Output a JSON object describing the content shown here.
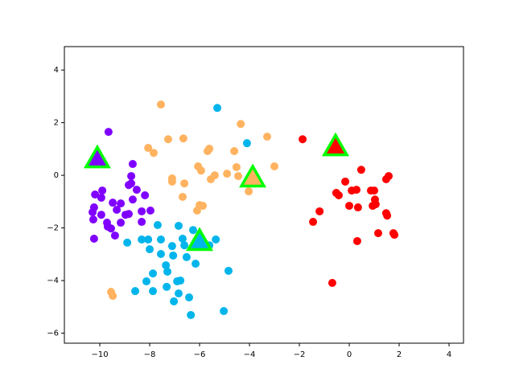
{
  "chart_data": {
    "type": "scatter",
    "xlim": [
      -11.42,
      4.58
    ],
    "ylim": [
      -6.38,
      4.89
    ],
    "xticks": [
      {
        "value": -10,
        "label": "−10"
      },
      {
        "value": -8,
        "label": "−8"
      },
      {
        "value": -6,
        "label": "−6"
      },
      {
        "value": -4,
        "label": "−4"
      },
      {
        "value": -2,
        "label": "−2"
      },
      0,
      2,
      4
    ],
    "yticks": [
      {
        "value": -6,
        "label": "−6"
      },
      {
        "value": -4,
        "label": "−4"
      },
      {
        "value": -2,
        "label": "−2"
      },
      0,
      2,
      4
    ],
    "series": [
      {
        "color": "#8000ff",
        "x": [
          -9.65,
          -9.9,
          -10.19,
          -9.94,
          -9.48,
          -9.16,
          -8.68,
          -8.52,
          -8.74,
          -8.74,
          -8.68,
          -8.84,
          -10.23,
          -9.94,
          -10.26,
          -9.71,
          -9.55,
          -9.16,
          -8.84,
          -8.32,
          -7.97,
          -8.32,
          -9.39,
          -10.23,
          -9.68,
          -8.97,
          -10.29,
          -9.32,
          -8.19
        ],
        "y": [
          1.65,
          -0.58,
          -0.73,
          -0.85,
          -1.04,
          -1.07,
          -0.92,
          -0.55,
          -0.31,
          -0.03,
          0.43,
          -0.37,
          -1.22,
          -1.5,
          -1.68,
          -1.8,
          -2.02,
          -1.8,
          -1.47,
          -1.37,
          -1.34,
          -1.77,
          -2.29,
          -2.41,
          -1.95,
          -1.5,
          -1.4,
          -1.31,
          -0.76
        ]
      },
      {
        "color": "#00b5eb",
        "x": [
          -5.29,
          -4.1,
          -7.68,
          -8.06,
          -7.55,
          -8.0,
          -7.55,
          -7.1,
          -6.84,
          -6.26,
          -6.68,
          -6.52,
          -7.06,
          -7.35,
          -7.29,
          -7.87,
          -8.13,
          -6.9,
          -7.32,
          -7.87,
          -8.58,
          -6.84,
          -7.03,
          -6.42,
          -6.35,
          -5.03,
          -4.84,
          -6.16,
          -5.35,
          -8.9,
          -8.32,
          -5.61,
          -6.77,
          -6.61
        ],
        "y": [
          2.56,
          1.22,
          -1.89,
          -2.44,
          -2.44,
          -2.81,
          -2.99,
          -2.69,
          -1.92,
          -2.08,
          -2.41,
          -3.11,
          -3.05,
          -3.42,
          -3.66,
          -3.73,
          -4.03,
          -4.03,
          -4.24,
          -4.4,
          -4.4,
          -4.49,
          -4.79,
          -4.64,
          -5.31,
          -5.16,
          -3.63,
          -3.36,
          -2.44,
          -2.56,
          -2.44,
          -2.66,
          -4.0,
          -2.66
        ]
      },
      {
        "color": "#ffb360",
        "x": [
          -7.55,
          -7.26,
          -8.06,
          -7.84,
          -6.65,
          -5.61,
          -5.68,
          -4.35,
          -3.29,
          -4.61,
          -6.06,
          -5.94,
          -7.1,
          -6.61,
          -6.68,
          -6.0,
          -6.1,
          -5.55,
          -5.39,
          -4.9,
          -4.52,
          -4.45,
          -4.03,
          -3.0,
          -9.55,
          -9.48,
          -7.1,
          -5.87
        ],
        "y": [
          2.69,
          1.37,
          1.04,
          0.85,
          1.4,
          1.01,
          0.92,
          1.95,
          1.47,
          0.92,
          0.34,
          0.18,
          -0.12,
          -0.31,
          -0.82,
          -1.13,
          -1.34,
          -0.15,
          0.0,
          0.06,
          0.31,
          -0.03,
          -0.61,
          0.34,
          -4.43,
          -4.58,
          -0.24,
          -1.16
        ]
      },
      {
        "color": "#ff0000",
        "x": [
          -1.87,
          -0.16,
          0.48,
          0.29,
          0.1,
          -0.52,
          -0.42,
          0,
          0.35,
          0.87,
          1.0,
          1.48,
          1.58,
          1.03,
          1.06,
          0.94,
          1.48,
          1.52,
          -1.19,
          -1.45,
          0.32,
          1.16,
          1.77,
          1.81,
          -0.68
        ],
        "y": [
          1.37,
          -0.24,
          0.21,
          -0.55,
          -0.58,
          -0.67,
          -0.76,
          -1.16,
          -1.22,
          -0.58,
          -0.58,
          -0.15,
          -0.03,
          -0.92,
          -1.1,
          -1.16,
          -1.44,
          -1.53,
          -1.37,
          -1.77,
          -2.5,
          -2.2,
          -2.2,
          -2.26,
          -4.09
        ]
      }
    ],
    "centroids": {
      "marker": "triangle",
      "edgecolor": "#00ff00",
      "x": [
        -10.1,
        -6.0,
        -3.87,
        -0.55
      ],
      "y": [
        0.64,
        -2.5,
        -0.09,
        1.1
      ],
      "colors": [
        "#8000ff",
        "#00b5eb",
        "#ffb360",
        "#ff0000"
      ]
    }
  }
}
